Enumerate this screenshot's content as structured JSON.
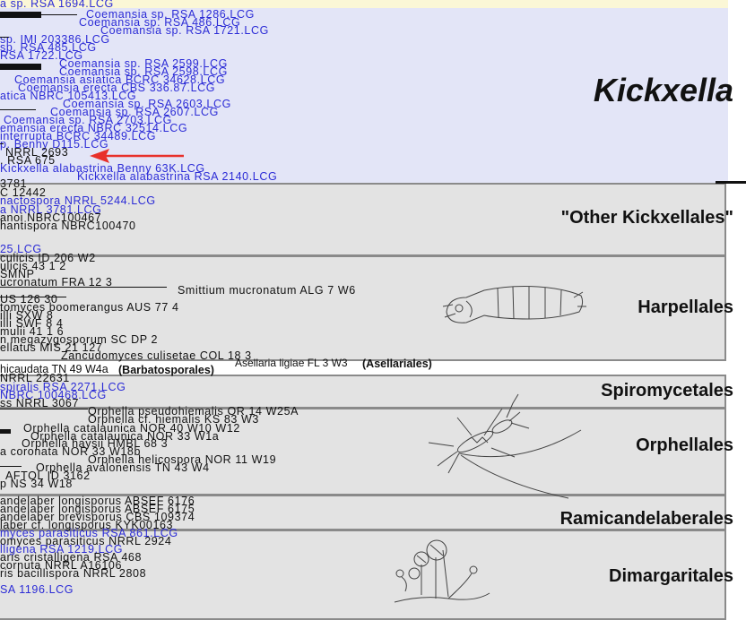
{
  "clades": [
    {
      "name": "Kickxella",
      "style": "italic-large"
    },
    {
      "name": "\"Other Kickxellales\""
    },
    {
      "name": "Harpellales"
    },
    {
      "name": "Spiromycetales"
    },
    {
      "name": "Orphellales"
    },
    {
      "name": "Ramicandelaberales"
    },
    {
      "name": "Dimargaritales"
    }
  ],
  "kickxella_taxa": [
    {
      "text": "a sp. RSA 1694.LCG",
      "color": "blue"
    },
    {
      "text": "Coemansia sp. RSA 1286.LCG",
      "color": "blue"
    },
    {
      "text": "Coemansia sp. RSA 486.LCG",
      "color": "blue"
    },
    {
      "text": "Coemansia sp. RSA 1721.LCG",
      "color": "blue"
    },
    {
      "text": "sp. IMI 203386.LCG",
      "color": "blue"
    },
    {
      "text": "sp. RSA 485.LCG",
      "color": "blue"
    },
    {
      "text": "RSA 1722.LCG",
      "color": "blue"
    },
    {
      "text": "Coemansia sp. RSA 2599.LCG",
      "color": "blue"
    },
    {
      "text": "Coemansia sp. RSA 2598.LCG",
      "color": "blue"
    },
    {
      "text": "Coemansia asiatica BCRC 34628.LCG",
      "color": "blue"
    },
    {
      "text": "Coemansia erecta CBS 336.87.LCG",
      "color": "blue"
    },
    {
      "text": "atica NBRC 105413.LCG",
      "color": "blue"
    },
    {
      "text": "Coemansia sp. RSA 2603.LCG",
      "color": "blue"
    },
    {
      "text": "Coemansia sp. RSA 2607.LCG",
      "color": "blue"
    },
    {
      "text": "Coemansia sp. RSA 2703.LCG",
      "color": "blue"
    },
    {
      "text": "emansia erecta NBRC 32514.LCG",
      "color": "blue"
    },
    {
      "text": "interrupta BCRC 34489.LCG",
      "color": "blue"
    },
    {
      "text": "p. Benny D115.LCG",
      "color": "blue"
    },
    {
      "text": "NRRL 2693",
      "color": "black"
    },
    {
      "text": ". RSA 675",
      "color": "black"
    },
    {
      "text": "Kickxella alabastrina Benny 63K.LCG",
      "color": "blue"
    },
    {
      "text": "Kickxella alabastrina RSA 2140.LCG",
      "color": "blue"
    }
  ],
  "other_kickxellales_taxa": [
    {
      "text": "3781",
      "color": "black"
    },
    {
      "text": "C 12442",
      "color": "black"
    },
    {
      "text": "nactospora NRRL 5244.LCG",
      "color": "blue"
    },
    {
      "text": "a NRRL 3781.LCG",
      "color": "blue"
    },
    {
      "text": "anoi NBRC100467",
      "color": "black"
    },
    {
      "text": "hantispora NBRC100470",
      "color": "black"
    },
    {
      "text": "25.LCG",
      "color": "blue"
    }
  ],
  "harpellales_taxa": [
    {
      "text": "culicis ID 206 W2",
      "color": "black"
    },
    {
      "text": "ulicis 43 1 2",
      "color": "black"
    },
    {
      "text": "SMNP",
      "color": "black"
    },
    {
      "text": "ucronatum FRA 12 3",
      "color": "black"
    },
    {
      "text": "Smittium mucronatum ALG 7 W6",
      "color": "black"
    },
    {
      "text": "US 126 30",
      "color": "black"
    },
    {
      "text": "tomyces boomerangus AUS 77 4",
      "color": "black"
    },
    {
      "text": "illi SXW 8",
      "color": "black"
    },
    {
      "text": "illi SWF 8 4",
      "color": "black"
    },
    {
      "text": "mulii 41 1 6",
      "color": "black"
    },
    {
      "text": "n megazygosporum SC DP 2",
      "color": "black"
    },
    {
      "text": "ellatus MIS 21 127",
      "color": "black"
    },
    {
      "text": "Zancudomyces culisetae COL 18 3",
      "color": "black"
    }
  ],
  "barbato_line": {
    "text": "hicaudata TN 49 W4a",
    "group": "(Barbatosporales)"
  },
  "asellaria_line": {
    "text": "Asellaria ligiae FL 3 W3",
    "group": "(Asellariales)"
  },
  "spiromycetales_taxa": [
    {
      "text": "NRRL 22631",
      "color": "black"
    },
    {
      "text": "spiralis RSA 2271.LCG",
      "color": "blue"
    },
    {
      "text": "NBRC 100468.LCG",
      "color": "blue"
    },
    {
      "text": "ss NRRL 3067",
      "color": "black"
    }
  ],
  "orphellales_taxa": [
    {
      "text": "Orphella pseudohiemalis OR 14 W25A",
      "color": "black"
    },
    {
      "text": "Orphella cf. hiemalis KS 83 W3",
      "color": "black"
    },
    {
      "text": "Orphella catalaunica NOR 40 W10 W12",
      "color": "black"
    },
    {
      "text": "Orphella catalaunica NOR 33 W1a",
      "color": "black"
    },
    {
      "text": "Orphella haysii HMBL 68 3",
      "color": "black"
    },
    {
      "text": "a coronata NOR 33 W18b",
      "color": "black"
    },
    {
      "text": "Orphella helicospora NOR 11 W19",
      "color": "black"
    },
    {
      "text": "Orphella avalonensis TN 43 W4",
      "color": "black"
    },
    {
      "text": "AFTOL ID 3162",
      "color": "black"
    },
    {
      "text": "p NS 34 W18",
      "color": "black"
    }
  ],
  "ramicandelaberales_taxa": [
    {
      "text": "andelaber longisporus ABSEF 6176",
      "color": "black"
    },
    {
      "text": "andelaber longisporus ABSEF 6175",
      "color": "black"
    },
    {
      "text": "andelaber brevisporus CBS 109374",
      "color": "black"
    },
    {
      "text": "laber cf. longisporus KYK00163",
      "color": "black"
    }
  ],
  "dimargaritales_taxa": [
    {
      "text": "myces parasiticus RSA 861.LCG",
      "color": "blue"
    },
    {
      "text": "omyces parasiticus NRRL 2924",
      "color": "black"
    },
    {
      "text": "lligena RSA 1219.LCG",
      "color": "blue"
    },
    {
      "text": "aris cristalligena RSA 468",
      "color": "black"
    },
    {
      "text": "cornuta NRRL A16106",
      "color": "black"
    },
    {
      "text": "ris bacillispora NRRL 2808",
      "color": "black"
    },
    {
      "text": "SA 1196.LCG",
      "color": "blue"
    }
  ],
  "colors": {
    "kickxella_band": "#e3e5f7",
    "gray_band": "#e3e3e3",
    "blue_text": "#2b2bd6",
    "arrow": "#e8302a",
    "top_strip": "#fbf7d6"
  }
}
